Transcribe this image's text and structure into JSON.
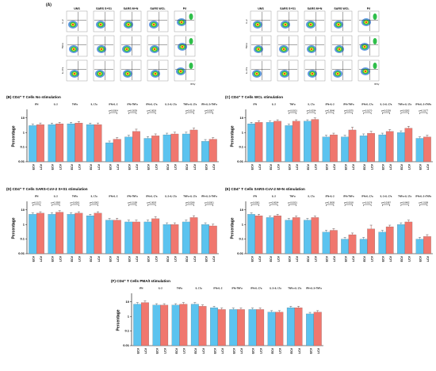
{
  "panel_a": {
    "label": "(A)",
    "columns": [
      "UNS",
      "SARS S+S1",
      "SARS M+N",
      "SARS WCL",
      "P/I"
    ],
    "row_labels": [
      "IL-2",
      "TNFα",
      "IL-17a"
    ],
    "x_label": "IFNγ"
  },
  "chart_data": [
    {
      "type": "bar",
      "title": "(B) CD4⁺ T Cells No stimulation",
      "ylabel": "Percentage",
      "log": true,
      "ylim": [
        0.01,
        30
      ],
      "yticks": [
        0.01,
        0.1,
        1,
        10
      ],
      "categories": [
        "IFN",
        "IL-2",
        "TNFα",
        "IL-17a",
        "IFN+IL-2",
        "IFN+TNFα",
        "IFN+IL-17a",
        "IL-2+IL-17a",
        "TNFα+IL-17a",
        "IFN+IL-2+TNFα"
      ],
      "series": [
        {
          "name": "ECV",
          "color": "#5bc3ef",
          "values": [
            3,
            3.5,
            4,
            3.5,
            0.2,
            0.5,
            0.4,
            0.7,
            0.8,
            0.25
          ],
          "errors": [
            0.8,
            0.9,
            1,
            0.9,
            0.06,
            0.15,
            0.12,
            0.2,
            0.25,
            0.08
          ]
        },
        {
          "name": "LCV",
          "color": "#f0776e",
          "values": [
            3.5,
            4,
            4.5,
            3.5,
            0.35,
            1.2,
            0.6,
            0.8,
            1.5,
            0.35
          ],
          "errors": [
            1,
            1,
            1.2,
            1,
            0.1,
            0.5,
            0.2,
            0.25,
            0.5,
            0.1
          ]
        }
      ],
      "annotations": [
        {
          "category": "IFN+IL-2",
          "label": "p=0.0004"
        },
        {
          "category": "IFN+TNFα",
          "label": "p=0.0039"
        },
        {
          "category": "IFN+IL-17a",
          "label": "p=0.0026"
        },
        {
          "category": "TNFα+IL-17a",
          "label": "p=0.0119"
        },
        {
          "category": "IFN+IL-2+TNFα",
          "label": "p=0.0007"
        }
      ]
    },
    {
      "type": "bar",
      "title": "(C) CD4⁺ T Cells WCL stimulation",
      "ylabel": "Percentage",
      "log": true,
      "ylim": [
        0.01,
        30
      ],
      "yticks": [
        0.01,
        0.1,
        1,
        10
      ],
      "categories": [
        "IFN",
        "IL-2",
        "TNFα",
        "IL-17a",
        "IFN+IL-2",
        "IFN+TNFα",
        "IFN+IL-17a",
        "IL-2+IL-17a",
        "TNFα+IL-17a",
        "IFN+IL-2+TNFα"
      ],
      "series": [
        {
          "name": "ECV",
          "color": "#5bc3ef",
          "values": [
            4,
            5,
            3,
            6,
            0.5,
            0.5,
            0.6,
            0.7,
            1,
            0.4
          ],
          "errors": [
            1,
            1.2,
            0.8,
            1.5,
            0.15,
            0.15,
            0.2,
            0.2,
            0.3,
            0.1
          ]
        },
        {
          "name": "LCV",
          "color": "#f0776e",
          "values": [
            5,
            6,
            6,
            8,
            0.7,
            1.5,
            0.9,
            1.2,
            2,
            0.5
          ],
          "errors": [
            1.2,
            1.5,
            1.5,
            2,
            0.2,
            0.8,
            0.3,
            0.4,
            0.7,
            0.15
          ]
        }
      ],
      "annotations": [
        {
          "category": "TNFα",
          "label": "p<0.0001"
        },
        {
          "category": "IL-17a",
          "label": "p=0.0034"
        },
        {
          "category": "IFN+IL-2",
          "label": "p=0.0046"
        },
        {
          "category": "IFN+TNFα",
          "label": "p=0.0075"
        },
        {
          "category": "IFN+IL-17a",
          "label": "p=0.0170"
        },
        {
          "category": "IL-2+IL-17a",
          "label": "p=0.0209"
        },
        {
          "category": "TNFα+IL-17a",
          "label": "p=0.0282"
        },
        {
          "category": "IFN+IL-2+TNFα",
          "label": "p=0.0177"
        }
      ]
    },
    {
      "type": "bar",
      "title": "(D) CD4⁺ T Cells SARS-CoV-2 S+S1 stimulation",
      "ylabel": "Percentage",
      "log": true,
      "ylim": [
        0.01,
        30
      ],
      "yticks": [
        0.01,
        0.1,
        1,
        10
      ],
      "categories": [
        "IFN",
        "IL-2",
        "TNFα",
        "IL-17a",
        "IFN+IL-2",
        "IFN+TNFα",
        "IFN+IL-17a",
        "IL-2+IL-17a",
        "TNFα+IL-17a",
        "IFN+IL-2+TNFα"
      ],
      "series": [
        {
          "name": "ECV",
          "color": "#5bc3ef",
          "values": [
            5,
            5,
            5,
            4,
            2,
            1.5,
            1.5,
            1,
            1.5,
            1
          ],
          "errors": [
            1.2,
            1.2,
            1.2,
            1,
            0.6,
            0.5,
            0.5,
            0.3,
            0.5,
            0.3
          ]
        },
        {
          "name": "LCV",
          "color": "#f0776e",
          "values": [
            6,
            7,
            6,
            6,
            2,
            1.5,
            2.5,
            1,
            3,
            0.8
          ],
          "errors": [
            1.5,
            1.8,
            1.5,
            1.5,
            0.7,
            0.5,
            1,
            0.3,
            1,
            0.25
          ]
        }
      ],
      "annotations": [
        {
          "category": "IFN",
          "label": "p=0.0172"
        },
        {
          "category": "IL-2",
          "label": "p=0.0383"
        },
        {
          "category": "TNFα",
          "label": "p=0.0001"
        },
        {
          "category": "IL-17a",
          "label": "p=0.0002"
        },
        {
          "category": "IFN+TNFα",
          "label": "p=0.0158"
        },
        {
          "category": "IFN+IL-17a",
          "label": "p=0.0003"
        },
        {
          "category": "TNFα+IL-17a",
          "label": "p=0.0266"
        },
        {
          "category": "IFN+IL-2+TNFα",
          "label": "p<0.0001"
        }
      ]
    },
    {
      "type": "bar",
      "title": "(E) CD4⁺ T Cells SARS-CoV-2 M+N stimulation",
      "ylabel": "Percentage",
      "log": true,
      "ylim": [
        0.01,
        30
      ],
      "yticks": [
        0.01,
        0.1,
        1,
        10
      ],
      "categories": [
        "IFN",
        "IL-2",
        "TNFα",
        "IL-17a",
        "IFN+IL-2",
        "IFN+TNFα",
        "IFN+IL-17a",
        "IL-2+IL-17a",
        "TNFα+IL-17a",
        "IFN+IL-2+TNFα"
      ],
      "series": [
        {
          "name": "ECV",
          "color": "#5bc3ef",
          "values": [
            5,
            3,
            2,
            2,
            0.3,
            0.1,
            0.1,
            0.3,
            1,
            0.1
          ],
          "errors": [
            1.2,
            0.8,
            0.6,
            0.6,
            0.1,
            0.03,
            0.03,
            0.1,
            0.3,
            0.03
          ]
        },
        {
          "name": "LCV",
          "color": "#f0776e",
          "values": [
            4,
            4,
            3,
            3,
            0.4,
            0.2,
            0.5,
            0.7,
            1.5,
            0.15
          ],
          "errors": [
            1,
            1,
            0.8,
            0.8,
            0.12,
            0.06,
            0.4,
            0.2,
            0.5,
            0.05
          ]
        }
      ],
      "annotations": [
        {
          "category": "IFN",
          "label": "p<0.0001"
        },
        {
          "category": "IL-2",
          "label": "p=0.0004"
        },
        {
          "category": "TNFα",
          "label": "p<0.0001"
        },
        {
          "category": "IFN+IL-2",
          "label": "p=0.0005"
        },
        {
          "category": "IFN+TNFα",
          "label": "p=0.0018"
        },
        {
          "category": "IFN+IL-17a",
          "label": "p=0.0176"
        },
        {
          "category": "IL-2+IL-17a",
          "label": "p=0.0087"
        },
        {
          "category": "TNFα+IL-17a",
          "label": "p=0.0482"
        },
        {
          "category": "IFN+IL-2+TNFα",
          "label": "p=0.0158"
        }
      ]
    },
    {
      "type": "bar",
      "title": "(F) CD4⁺ T Cells PMA/I stimulation",
      "ylabel": "Percentage",
      "log": true,
      "ylim": [
        0.01,
        30
      ],
      "yticks": [
        0.01,
        0.1,
        1,
        10
      ],
      "categories": [
        "IFN",
        "IL-2",
        "TNFα",
        "IL-17a",
        "IFN+IL-2",
        "IFN+TNFα",
        "IFN+IL-17a",
        "IL-2+IL-17a",
        "TNFα+IL-17a",
        "IFN+IL-2+TNFα"
      ],
      "series": [
        {
          "name": "ECV",
          "color": "#5bc3ef",
          "values": [
            7,
            6,
            6,
            7,
            4,
            3,
            3,
            2,
            4,
            1.5
          ],
          "errors": [
            2,
            1.5,
            1.5,
            2,
            1,
            0.8,
            0.8,
            0.5,
            1,
            0.4
          ]
        },
        {
          "name": "LCV",
          "color": "#f0776e",
          "values": [
            9,
            6,
            7,
            5,
            3,
            3,
            3,
            2,
            4,
            2
          ],
          "errors": [
            2.5,
            1.5,
            2,
            1.2,
            0.8,
            0.8,
            0.8,
            0.5,
            1,
            0.5
          ]
        }
      ],
      "annotations": []
    }
  ]
}
